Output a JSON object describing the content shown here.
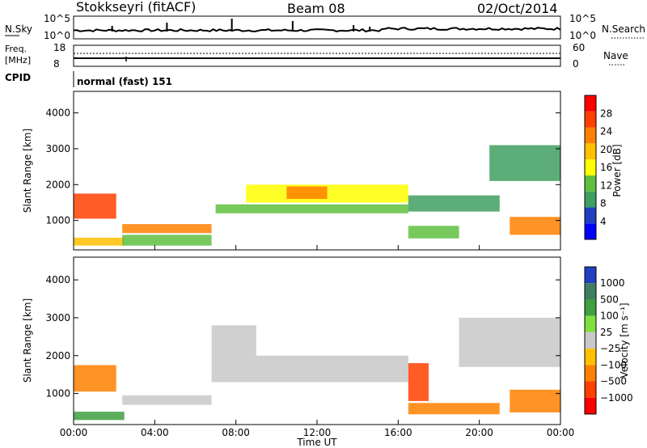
{
  "header": {
    "title": "Stokkseyri (fitACF)",
    "beam": "Beam 08",
    "date": "02/Oct/2014"
  },
  "top_panels": {
    "nsky_label": "N.Sky",
    "nsky_ticks": [
      "10^5",
      "10^0"
    ],
    "nsearch_label": "N.Search",
    "nsearch_ticks": [
      "10^5",
      "10^0"
    ],
    "freq_label_1": "Freq.",
    "freq_label_2": "[MHz]",
    "freq_ticks": [
      "18",
      "8"
    ],
    "nave_label": "Nave",
    "nave_ticks": [
      "60",
      "0"
    ],
    "cpid_label": "CPID",
    "cpid_value": "normal (fast) 151"
  },
  "colors": {
    "power_scale": [
      "#0000ff",
      "#2040c0",
      "#3f9f5f",
      "#5fbf3f",
      "#ffff00",
      "#ffc000",
      "#ff8000",
      "#ff4000",
      "#ff0000"
    ],
    "velocity_scale": [
      "#2040c0",
      "#3f7f5f",
      "#3fa03f",
      "#7fdf3f",
      "#c8c8c8",
      "#ffc000",
      "#ff8000",
      "#ff4000",
      "#ff0000"
    ]
  },
  "chart_data": [
    {
      "type": "heatmap",
      "quantity": "power",
      "ylabel": "Slant Range [km]",
      "ylim": [
        180,
        4600
      ],
      "yticks": [
        "4000",
        "3000",
        "2000",
        "1000"
      ],
      "xlim": [
        0,
        24
      ],
      "colorbar_label": "Power [dB]",
      "colorbar_ticks": [
        "28",
        "24",
        "20",
        "16",
        "12",
        "8",
        "4"
      ],
      "colorbar_range": [
        0,
        32
      ],
      "regions": [
        {
          "t": [
            0.0,
            2.1
          ],
          "r": [
            1050,
            1750
          ],
          "level": 26
        },
        {
          "t": [
            0.0,
            2.5
          ],
          "r": [
            300,
            520
          ],
          "level": 20
        },
        {
          "t": [
            2.4,
            6.8
          ],
          "r": [
            650,
            900
          ],
          "level": 22
        },
        {
          "t": [
            2.4,
            6.8
          ],
          "r": [
            300,
            600
          ],
          "level": 14
        },
        {
          "t": [
            7.0,
            16.5
          ],
          "r": [
            1200,
            1450
          ],
          "level": 14
        },
        {
          "t": [
            8.5,
            16.5
          ],
          "r": [
            1500,
            2000
          ],
          "level": 16
        },
        {
          "t": [
            10.5,
            12.5
          ],
          "r": [
            1600,
            1950
          ],
          "level": 22
        },
        {
          "t": [
            16.5,
            21.0
          ],
          "r": [
            1250,
            1700
          ],
          "level": 10
        },
        {
          "t": [
            16.5,
            19.0
          ],
          "r": [
            500,
            850
          ],
          "level": 12
        },
        {
          "t": [
            20.5,
            24.0
          ],
          "r": [
            2100,
            3100
          ],
          "level": 8
        },
        {
          "t": [
            21.5,
            24.0
          ],
          "r": [
            600,
            1100
          ],
          "level": 22
        }
      ]
    },
    {
      "type": "heatmap",
      "quantity": "velocity",
      "ylabel": "Slant Range [km]",
      "ylim": [
        180,
        4600
      ],
      "yticks": [
        "4000",
        "3000",
        "2000",
        "1000"
      ],
      "xlim": [
        0,
        24
      ],
      "xticks": [
        "00:00",
        "04:00",
        "08:00",
        "12:00",
        "16:00",
        "20:00",
        "00:00"
      ],
      "xlabel": "Time UT",
      "colorbar_label": "Velocity [m s⁻¹]",
      "colorbar_ticks": [
        "1000",
        "500",
        "100",
        "25",
        "−25",
        "−100",
        "−500",
        "−1000"
      ],
      "regions": [
        {
          "t": [
            0.0,
            2.1
          ],
          "r": [
            1050,
            1750
          ],
          "vel": -300
        },
        {
          "t": [
            0.0,
            2.5
          ],
          "r": [
            300,
            520
          ],
          "vel": 200
        },
        {
          "t": [
            2.4,
            6.8
          ],
          "r": [
            700,
            950
          ],
          "vel": 0
        },
        {
          "t": [
            6.8,
            16.5
          ],
          "r": [
            1300,
            2000
          ],
          "vel": 0
        },
        {
          "t": [
            6.8,
            9.0
          ],
          "r": [
            2000,
            2800
          ],
          "vel": 0
        },
        {
          "t": [
            16.5,
            21.0
          ],
          "r": [
            450,
            750
          ],
          "vel": -400
        },
        {
          "t": [
            16.5,
            17.5
          ],
          "r": [
            800,
            1800
          ],
          "vel": -700
        },
        {
          "t": [
            19.0,
            24.0
          ],
          "r": [
            1700,
            3000
          ],
          "vel": 0
        },
        {
          "t": [
            21.5,
            24.0
          ],
          "r": [
            500,
            1100
          ],
          "vel": -150
        }
      ]
    }
  ]
}
